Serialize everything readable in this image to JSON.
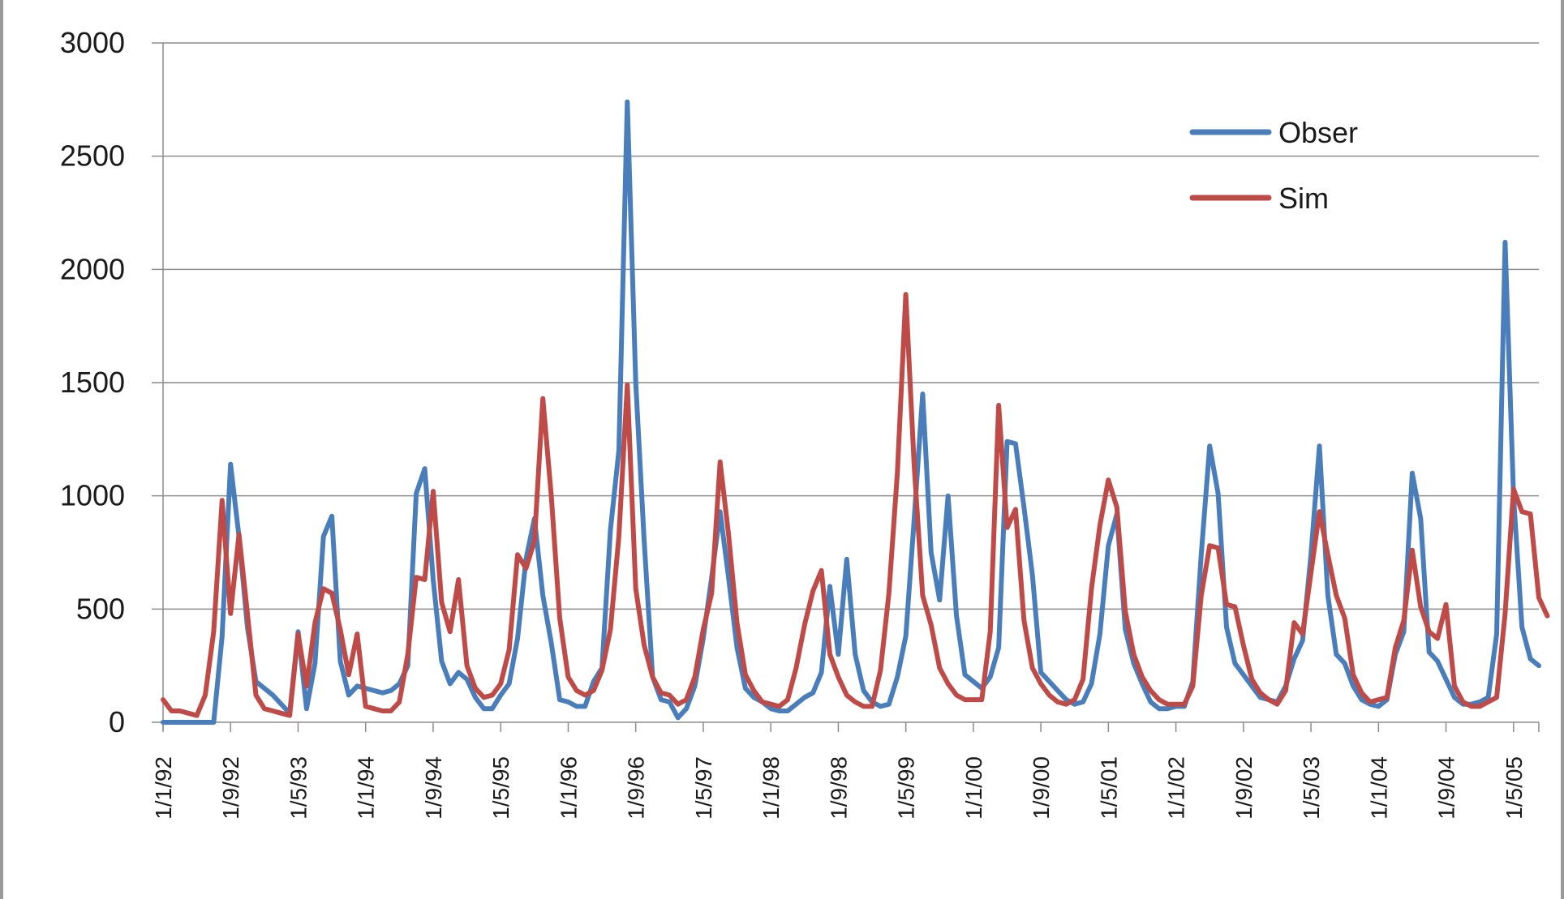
{
  "chart_data": {
    "type": "line",
    "title": "",
    "xlabel": "",
    "ylabel": "",
    "ylim": [
      0,
      3000
    ],
    "yticks": [
      0,
      500,
      1000,
      1500,
      2000,
      2500,
      3000
    ],
    "grid": true,
    "legend_position": "top-right",
    "xticks": [
      "1/1/92",
      "1/9/92",
      "1/5/93",
      "1/1/94",
      "1/9/94",
      "1/5/95",
      "1/1/96",
      "1/9/96",
      "1/5/97",
      "1/1/98",
      "1/9/98",
      "1/5/99",
      "1/1/00",
      "1/9/00",
      "1/5/01",
      "1/1/02",
      "1/9/02",
      "1/5/03",
      "1/1/04",
      "1/9/04",
      "1/5/05"
    ],
    "x_start": "1/1/92",
    "x_step": "1 month",
    "series": [
      {
        "name": "Obser",
        "color": "#4a7ebb",
        "values": [
          0,
          0,
          0,
          0,
          0,
          0,
          0,
          380,
          1140,
          820,
          420,
          180,
          150,
          120,
          80,
          40,
          400,
          60,
          260,
          820,
          910,
          270,
          120,
          160,
          150,
          140,
          130,
          140,
          170,
          250,
          1010,
          1120,
          630,
          270,
          170,
          220,
          190,
          110,
          60,
          60,
          120,
          170,
          370,
          720,
          900,
          560,
          350,
          100,
          90,
          70,
          70,
          180,
          240,
          850,
          1200,
          2740,
          1500,
          800,
          200,
          100,
          90,
          20,
          60,
          160,
          370,
          640,
          930,
          640,
          330,
          150,
          110,
          90,
          60,
          50,
          50,
          80,
          110,
          130,
          220,
          600,
          300,
          720,
          300,
          140,
          90,
          70,
          80,
          200,
          380,
          900,
          1450,
          750,
          540,
          1000,
          470,
          210,
          180,
          150,
          200,
          330,
          1240,
          1230,
          950,
          650,
          220,
          180,
          140,
          100,
          80,
          90,
          170,
          390,
          780,
          920,
          410,
          260,
          170,
          90,
          60,
          60,
          70,
          70,
          180,
          740,
          1220,
          1010,
          420,
          260,
          210,
          160,
          110,
          100,
          90,
          160,
          280,
          360,
          740,
          1220,
          560,
          300,
          260,
          160,
          100,
          80,
          70,
          100,
          300,
          400,
          1100,
          900,
          310,
          270,
          190,
          110,
          80,
          80,
          90,
          110,
          390,
          2120,
          1000,
          420,
          280,
          250
        ]
      },
      {
        "name": "Sim",
        "color": "#be4b48",
        "values": [
          100,
          50,
          50,
          40,
          30,
          120,
          400,
          980,
          480,
          830,
          480,
          120,
          60,
          50,
          40,
          30,
          390,
          160,
          440,
          590,
          570,
          410,
          210,
          390,
          70,
          60,
          50,
          50,
          90,
          300,
          640,
          630,
          1020,
          530,
          400,
          630,
          250,
          150,
          110,
          120,
          170,
          320,
          740,
          680,
          800,
          1430,
          1000,
          460,
          200,
          140,
          120,
          140,
          230,
          410,
          820,
          1490,
          590,
          340,
          200,
          130,
          120,
          80,
          100,
          200,
          410,
          570,
          1150,
          830,
          440,
          210,
          140,
          90,
          80,
          70,
          100,
          240,
          430,
          580,
          670,
          300,
          200,
          120,
          90,
          70,
          70,
          230,
          570,
          1100,
          1890,
          1130,
          560,
          430,
          240,
          170,
          120,
          100,
          100,
          100,
          400,
          1400,
          860,
          940,
          450,
          240,
          170,
          120,
          90,
          80,
          100,
          190,
          590,
          870,
          1070,
          950,
          490,
          300,
          200,
          140,
          100,
          80,
          80,
          80,
          160,
          560,
          780,
          770,
          520,
          510,
          340,
          190,
          130,
          100,
          80,
          140,
          440,
          390,
          660,
          930,
          740,
          560,
          460,
          210,
          130,
          90,
          100,
          110,
          330,
          450,
          760,
          510,
          400,
          370,
          520,
          160,
          90,
          70,
          70,
          90,
          110,
          480,
          1030,
          930,
          920,
          550,
          470
        ]
      }
    ]
  }
}
